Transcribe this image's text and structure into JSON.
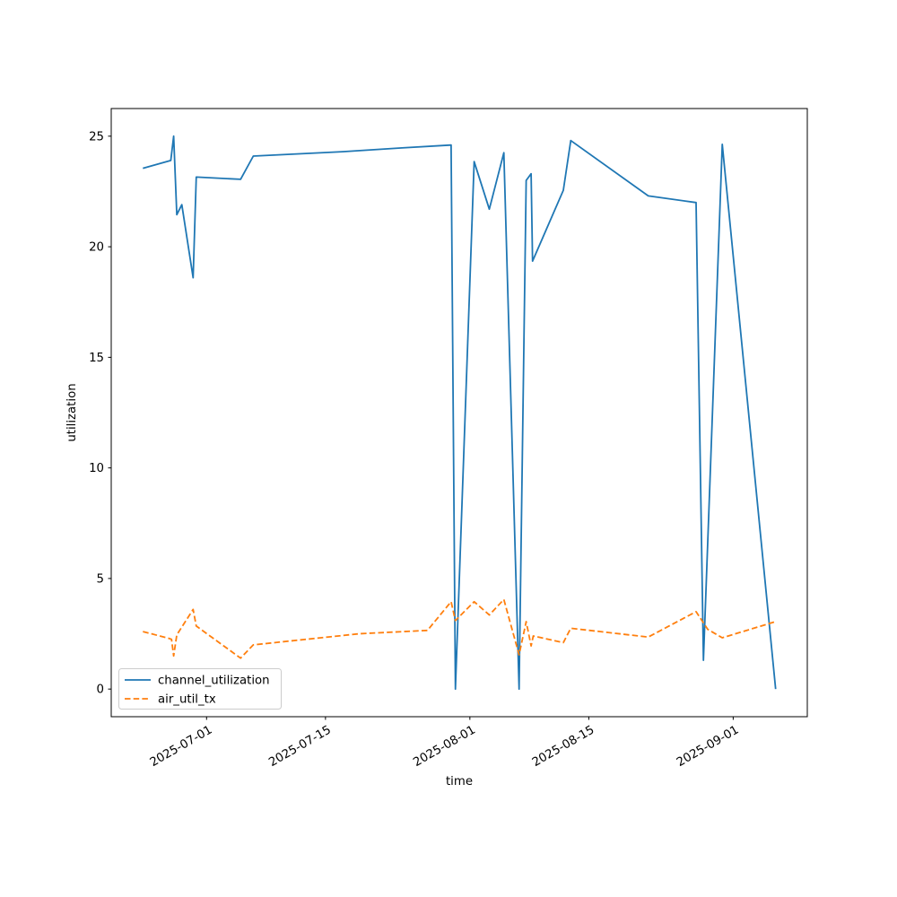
{
  "chart_data": {
    "type": "line",
    "title": "",
    "xlabel": "time",
    "ylabel": "utilization",
    "grid": false,
    "xlim": [
      "2025-06-19T18:36",
      "2025-09-09T17:24"
    ],
    "ylim": [
      -1.25,
      26.25
    ],
    "x_ticks": [
      "2025-07-01",
      "2025-07-15",
      "2025-08-01",
      "2025-08-15",
      "2025-09-01"
    ],
    "x_tick_labels": [
      "2025-07-01",
      "2025-07-15",
      "2025-08-01",
      "2025-08-15",
      "2025-09-01"
    ],
    "x_tick_rotation_deg": 30,
    "y_ticks": [
      0,
      5,
      10,
      15,
      20,
      25
    ],
    "y_tick_labels": [
      "0",
      "5",
      "10",
      "15",
      "20",
      "25"
    ],
    "legend": {
      "location": "lower left"
    },
    "series": [
      {
        "name": "channel_utilization",
        "color": "#1f77b4",
        "style": "solid",
        "points": [
          [
            "2025-06-23T12:00",
            23.55
          ],
          [
            "2025-06-26T19:00",
            23.9
          ],
          [
            "2025-06-27T03:00",
            25.0
          ],
          [
            "2025-06-27T12:00",
            21.45
          ],
          [
            "2025-06-28T02:00",
            21.9
          ],
          [
            "2025-06-29T10:00",
            18.6
          ],
          [
            "2025-06-29T19:00",
            23.15
          ],
          [
            "2025-07-05T00:00",
            23.05
          ],
          [
            "2025-07-06T12:00",
            24.1
          ],
          [
            "2025-07-17T00:00",
            24.3
          ],
          [
            "2025-07-24T00:00",
            24.47
          ],
          [
            "2025-07-29T19:00",
            24.6
          ],
          [
            "2025-07-30T07:00",
            0.0
          ],
          [
            "2025-08-01T12:00",
            23.85
          ],
          [
            "2025-08-03T07:00",
            21.7
          ],
          [
            "2025-08-05T00:00",
            24.25
          ],
          [
            "2025-08-06T19:00",
            0.0
          ],
          [
            "2025-08-07T15:00",
            23.0
          ],
          [
            "2025-08-08T05:00",
            23.3
          ],
          [
            "2025-08-08T09:00",
            19.35
          ],
          [
            "2025-08-12T00:00",
            22.55
          ],
          [
            "2025-08-12T21:00",
            24.8
          ],
          [
            "2025-08-22T00:00",
            22.3
          ],
          [
            "2025-08-27T15:00",
            22.0
          ],
          [
            "2025-08-28T12:00",
            1.3
          ],
          [
            "2025-08-30T17:00",
            24.63
          ],
          [
            "2025-09-06T00:00",
            0.0
          ]
        ]
      },
      {
        "name": "air_util_tx",
        "color": "#ff7f0e",
        "style": "dashed",
        "points": [
          [
            "2025-06-23T12:00",
            2.6
          ],
          [
            "2025-06-26T12:00",
            2.3
          ],
          [
            "2025-06-26T21:00",
            2.25
          ],
          [
            "2025-06-27T03:00",
            1.5
          ],
          [
            "2025-06-27T12:00",
            2.45
          ],
          [
            "2025-06-29T10:00",
            3.6
          ],
          [
            "2025-06-29T19:00",
            2.85
          ],
          [
            "2025-07-05T00:00",
            1.4
          ],
          [
            "2025-07-06T12:00",
            2.0
          ],
          [
            "2025-07-19T00:00",
            2.5
          ],
          [
            "2025-07-27T00:00",
            2.65
          ],
          [
            "2025-07-29T19:00",
            3.95
          ],
          [
            "2025-07-30T07:00",
            3.1
          ],
          [
            "2025-08-01T12:00",
            3.95
          ],
          [
            "2025-08-03T07:00",
            3.35
          ],
          [
            "2025-08-05T00:00",
            4.05
          ],
          [
            "2025-08-06T19:00",
            1.55
          ],
          [
            "2025-08-07T15:00",
            3.05
          ],
          [
            "2025-08-08T05:00",
            1.95
          ],
          [
            "2025-08-08T11:00",
            2.4
          ],
          [
            "2025-08-12T00:00",
            2.1
          ],
          [
            "2025-08-12T21:00",
            2.75
          ],
          [
            "2025-08-22T00:00",
            2.35
          ],
          [
            "2025-08-27T15:00",
            3.5
          ],
          [
            "2025-08-29T00:00",
            2.7
          ],
          [
            "2025-08-30T17:00",
            2.32
          ],
          [
            "2025-09-06T00:00",
            3.05
          ]
        ]
      }
    ]
  }
}
